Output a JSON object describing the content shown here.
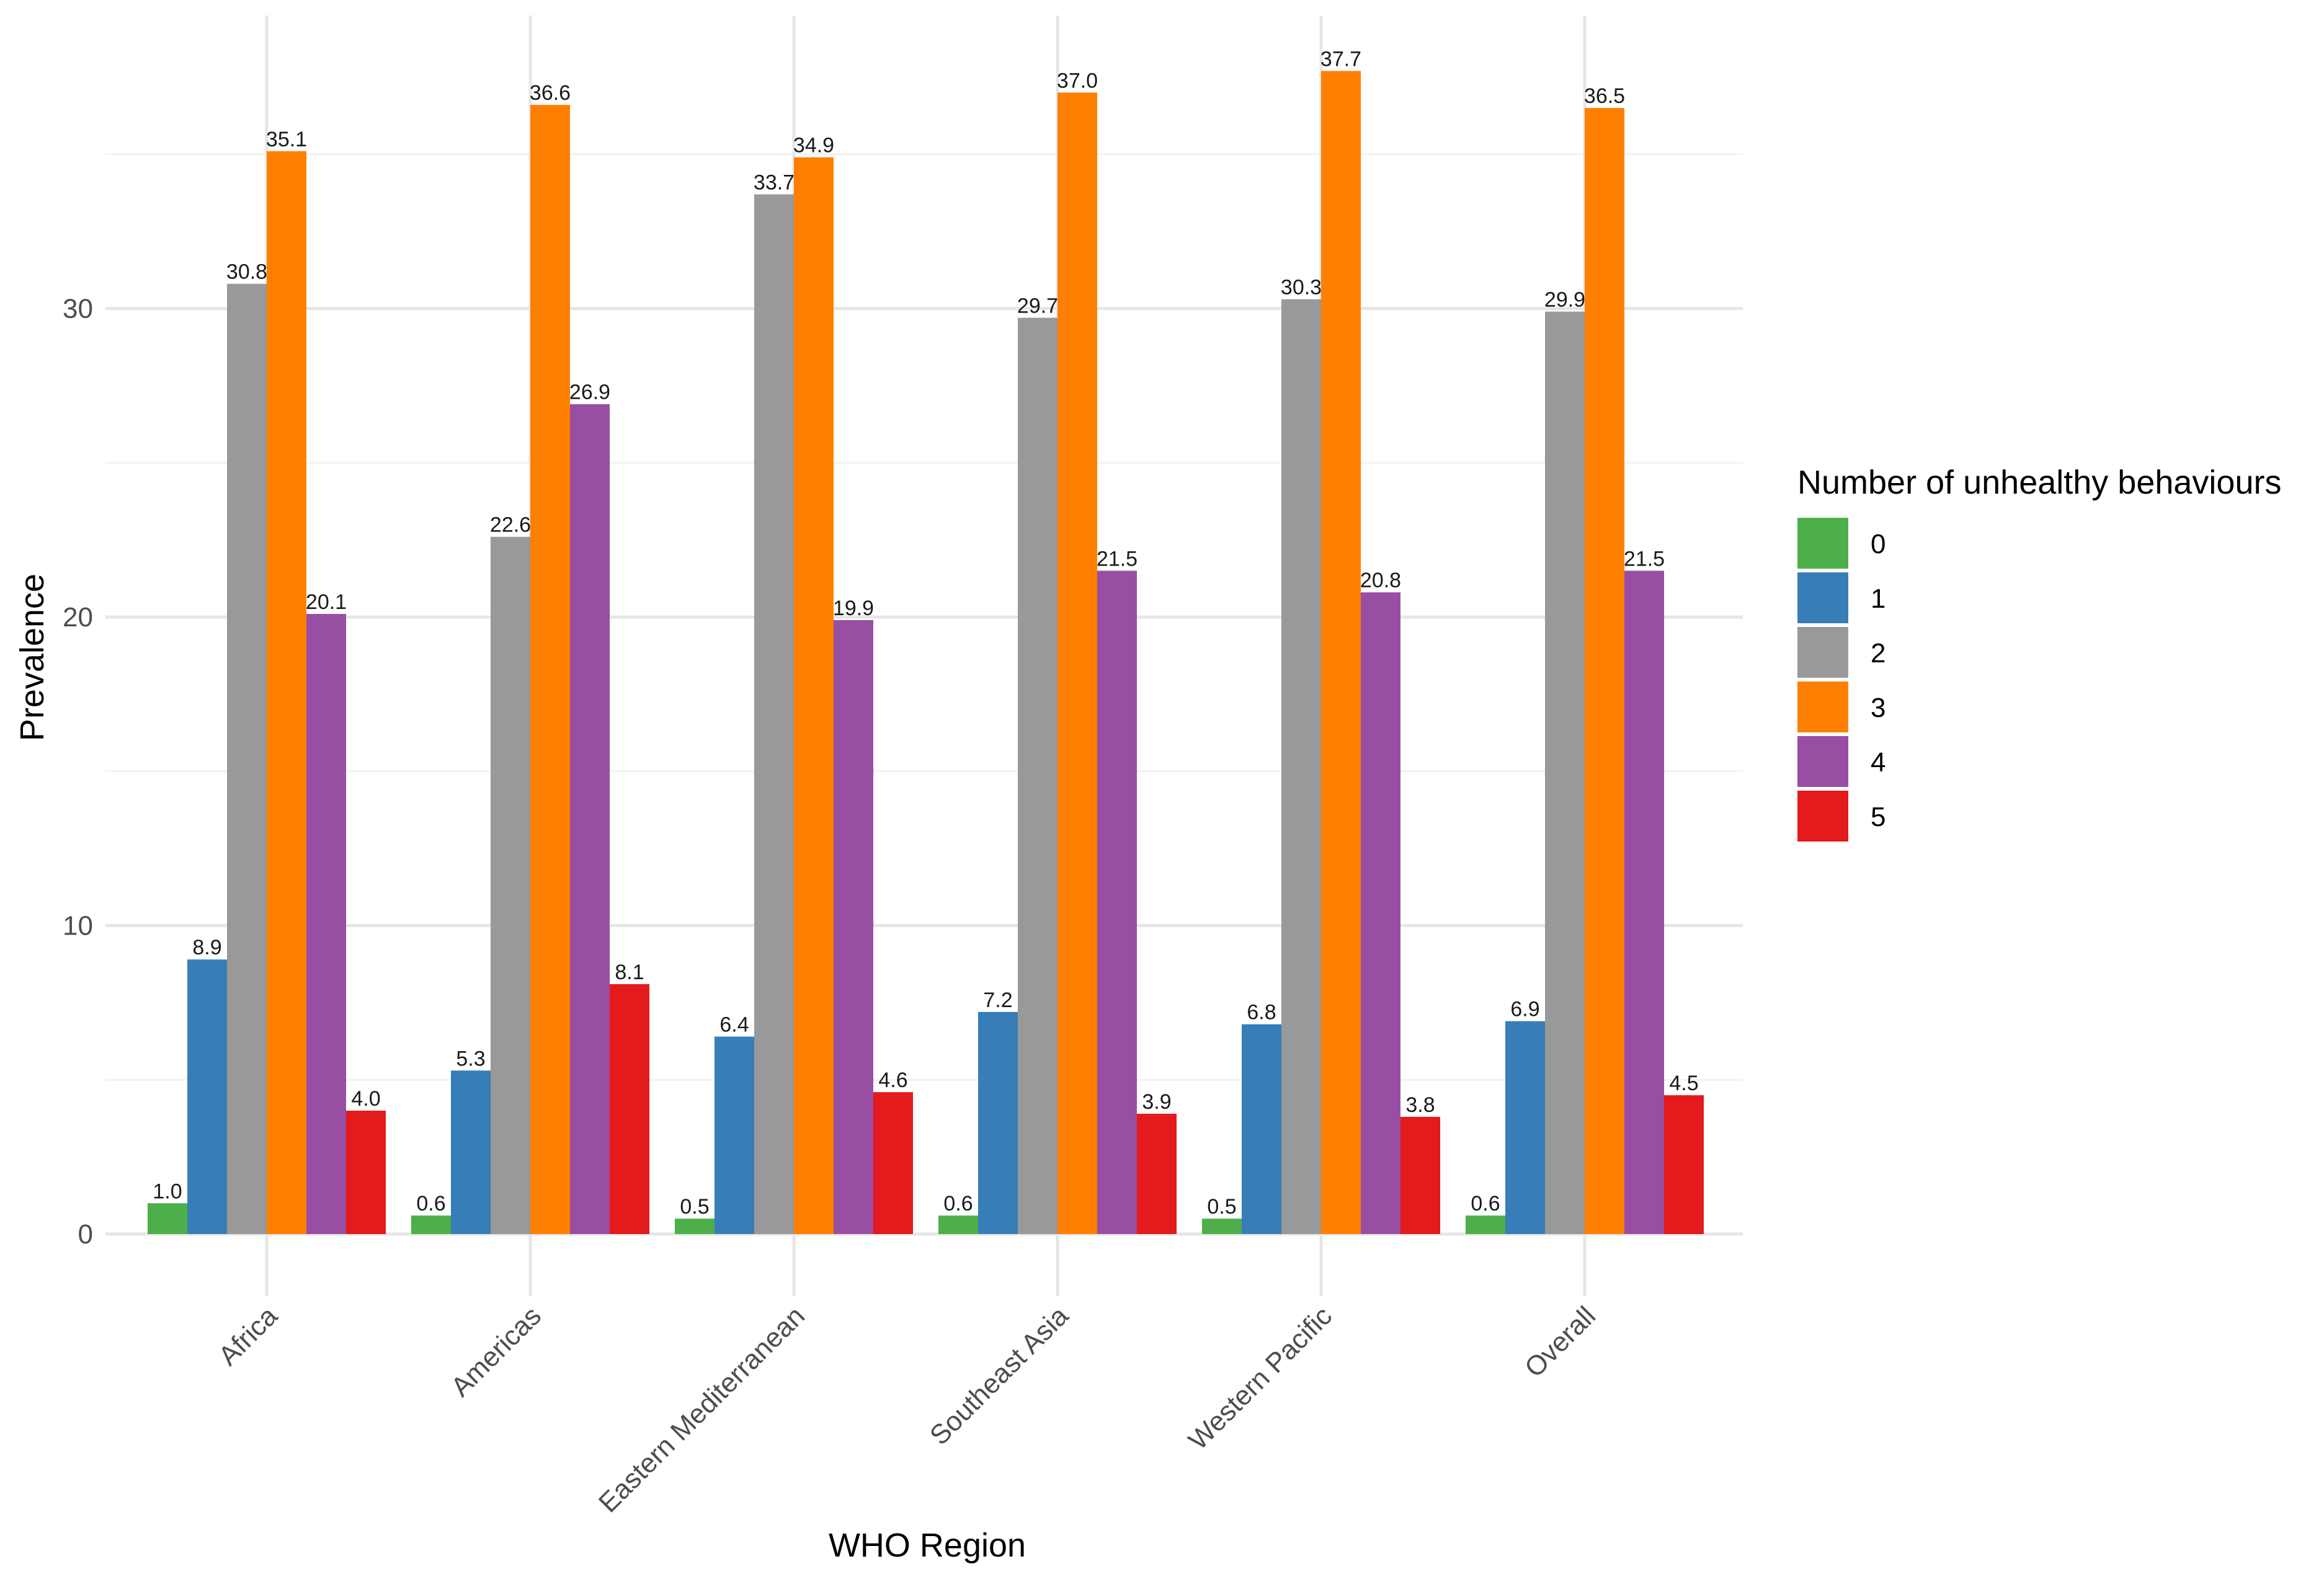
{
  "chart_data": {
    "type": "bar",
    "xlabel": "WHO Region",
    "ylabel": "Prevalence",
    "ylim": [
      0,
      37.7
    ],
    "yticks": [
      0,
      10,
      20,
      30
    ],
    "grid": true,
    "legend_title": "Number of unhealthy behaviours",
    "legend_position": "right",
    "categories": [
      "Africa",
      "Americas",
      "Eastern Mediterranean",
      "Southeast Asia",
      "Western Pacific",
      "Overall"
    ],
    "series": [
      {
        "name": "0",
        "color": "#4daf4a",
        "values": [
          1.0,
          0.6,
          0.5,
          0.6,
          0.5,
          0.6
        ],
        "labels": [
          "1.0",
          "0.6",
          "0.5",
          "0.6",
          "0.5",
          "0.6"
        ]
      },
      {
        "name": "1",
        "color": "#377eb8",
        "values": [
          8.9,
          5.3,
          6.4,
          7.2,
          6.8,
          6.9
        ],
        "labels": [
          "8.9",
          "5.3",
          "6.4",
          "7.2",
          "6.8",
          "6.9"
        ]
      },
      {
        "name": "2",
        "color": "#999999",
        "values": [
          30.8,
          22.6,
          33.7,
          29.7,
          30.3,
          29.9
        ],
        "labels": [
          "30.8",
          "22.6",
          "33.7",
          "29.7",
          "30.3",
          "29.9"
        ]
      },
      {
        "name": "3",
        "color": "#ff7f00",
        "values": [
          35.1,
          36.6,
          34.9,
          37.0,
          37.7,
          36.5
        ],
        "labels": [
          "35.1",
          "36.6",
          "34.9",
          "37.0",
          "37.7",
          "36.5"
        ]
      },
      {
        "name": "4",
        "color": "#984ea3",
        "values": [
          20.1,
          26.9,
          19.9,
          21.5,
          20.8,
          21.5
        ],
        "labels": [
          "20.1",
          "26.9",
          "19.9",
          "21.5",
          "20.8",
          "21.5"
        ]
      },
      {
        "name": "5",
        "color": "#e41a1c",
        "values": [
          4.0,
          8.1,
          4.6,
          3.9,
          3.8,
          4.5
        ],
        "labels": [
          "4.0",
          "8.1",
          "4.6",
          "3.9",
          "3.8",
          "4.5"
        ]
      }
    ]
  }
}
